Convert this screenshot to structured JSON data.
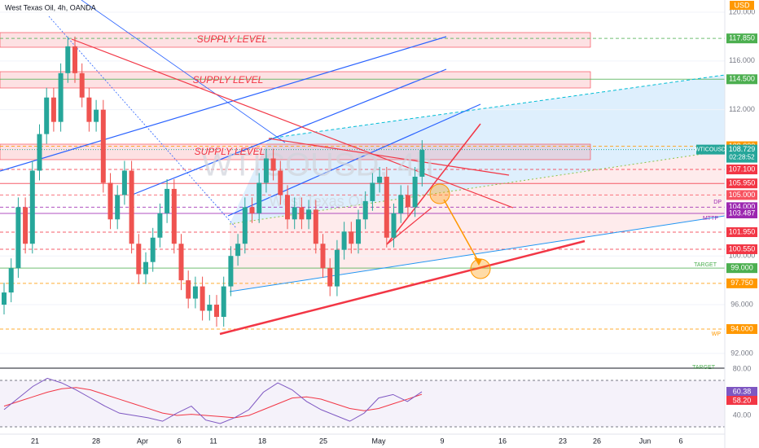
{
  "header": {
    "title": "West Texas Oil, 4h, OANDA",
    "currency": "USD"
  },
  "watermark": {
    "symbol": "WTICOUSD, 4h",
    "name": "West Texas Oil"
  },
  "zones": [
    "SUPPLY LEVEL",
    "SUPPLY LEVEL",
    "SUPPLY LEVEL"
  ],
  "price_ticks": [
    {
      "value": 120,
      "label": "120.000"
    },
    {
      "value": 116,
      "label": "116.000"
    },
    {
      "value": 112,
      "label": "112.000"
    },
    {
      "value": 100,
      "label": "100.000"
    },
    {
      "value": 96,
      "label": "96.000"
    },
    {
      "value": 92,
      "label": "92.000"
    }
  ],
  "price_labels": [
    {
      "value": 117.85,
      "label": "117.850",
      "color": "#4caf50"
    },
    {
      "value": 114.5,
      "label": "114.500",
      "color": "#4caf50"
    },
    {
      "value": 109,
      "label": "109.000",
      "color": "#ff9800"
    },
    {
      "value": 107.1,
      "label": "107.100",
      "color": "#f23645"
    },
    {
      "value": 105.95,
      "label": "105.950",
      "color": "#f23645"
    },
    {
      "value": 105,
      "label": "105.000",
      "color": "#f7525f"
    },
    {
      "value": 104,
      "label": "104.000",
      "color": "#9c27b0"
    },
    {
      "value": 103.487,
      "label": "103.487",
      "color": "#9c27b0"
    },
    {
      "value": 101.95,
      "label": "101.950",
      "color": "#f23645"
    },
    {
      "value": 100.55,
      "label": "100.550",
      "color": "#f23645"
    },
    {
      "value": 99,
      "label": "99.000",
      "color": "#4caf50"
    },
    {
      "value": 97.75,
      "label": "97.750",
      "color": "#ff9800"
    },
    {
      "value": 94,
      "label": "94.000",
      "color": "#ff9800"
    }
  ],
  "last_price": {
    "symbol": "WTICOUSD",
    "value": 108.729,
    "label": "108.729",
    "countdown": "02:28:52"
  },
  "line_tags": [
    "DP",
    "MTTP",
    "TARGET",
    "WP",
    "TARGET"
  ],
  "time_axis": [
    "21",
    "28",
    "Apr",
    "6",
    "11",
    "18",
    "25",
    "May",
    "9",
    "16",
    "23",
    "26",
    "Jun",
    "6"
  ],
  "candles": [
    [
      96,
      97.8,
      95.2,
      97
    ],
    [
      97,
      99.8,
      96.2,
      99
    ],
    [
      99,
      104.8,
      98.2,
      104
    ],
    [
      104,
      104.8,
      100.2,
      101
    ],
    [
      101,
      107.8,
      100.2,
      107
    ],
    [
      107,
      110.8,
      106.2,
      110
    ],
    [
      110,
      113.8,
      109.2,
      113
    ],
    [
      113,
      113.8,
      110.2,
      111
    ],
    [
      111,
      115.8,
      110.2,
      115
    ],
    [
      115,
      118,
      114.2,
      117.2
    ],
    [
      117.2,
      118,
      114.2,
      115
    ],
    [
      115,
      115.8,
      112.2,
      113
    ],
    [
      113,
      113.8,
      110.2,
      111
    ],
    [
      111,
      112.8,
      110.2,
      112
    ],
    [
      112,
      112.8,
      105.2,
      106
    ],
    [
      106,
      106.8,
      102.2,
      103
    ],
    [
      103,
      105.8,
      102.2,
      105
    ],
    [
      105,
      107.8,
      104.2,
      107
    ],
    [
      107,
      107.8,
      100.2,
      101
    ],
    [
      101,
      101.8,
      97.7,
      98.5
    ],
    [
      98.5,
      100.3,
      97.7,
      99.5
    ],
    [
      99.5,
      102.3,
      98.7,
      101.5
    ],
    [
      101.5,
      104.3,
      100.7,
      103.5
    ],
    [
      103.5,
      106.3,
      102.7,
      105.5
    ],
    [
      105.5,
      106.3,
      100.2,
      101
    ],
    [
      101,
      101.8,
      97.2,
      98
    ],
    [
      98,
      98.8,
      95.7,
      96.5
    ],
    [
      96.5,
      98.3,
      95.7,
      97.5
    ],
    [
      97.5,
      98.3,
      94.7,
      95.5
    ],
    [
      95.5,
      96.8,
      94.7,
      96
    ],
    [
      96,
      96.8,
      94.2,
      95
    ],
    [
      95,
      98.3,
      94.2,
      97.5
    ],
    [
      97.5,
      100.8,
      96.7,
      100
    ],
    [
      100,
      101.8,
      99.2,
      101
    ],
    [
      101,
      104.8,
      100.2,
      104
    ],
    [
      104,
      104.8,
      102.7,
      103.5
    ],
    [
      103.5,
      106.8,
      102.7,
      106
    ],
    [
      106,
      108.8,
      105.2,
      108
    ],
    [
      108,
      108.8,
      106.2,
      107
    ],
    [
      107,
      107.8,
      104.2,
      105
    ],
    [
      105,
      105.8,
      102.2,
      103
    ],
    [
      103,
      104.8,
      102.2,
      104
    ],
    [
      104,
      104.8,
      102.2,
      103
    ],
    [
      103,
      104.6,
      102.2,
      103.8
    ],
    [
      103.8,
      104.6,
      100.2,
      101
    ],
    [
      101,
      101.8,
      98.2,
      99
    ],
    [
      99,
      99.8,
      96.7,
      97.5
    ],
    [
      97.5,
      101.3,
      96.7,
      100.5
    ],
    [
      100.5,
      102.8,
      99.7,
      102
    ],
    [
      102,
      102.8,
      100.2,
      101
    ],
    [
      101,
      103.8,
      100.2,
      103
    ],
    [
      103,
      105.3,
      102.2,
      104.5
    ],
    [
      104.5,
      106.8,
      103.7,
      106
    ],
    [
      106,
      107.3,
      105.2,
      106.5
    ],
    [
      106.5,
      107.3,
      100.7,
      101.5
    ],
    [
      101.5,
      104.3,
      100.7,
      103.5
    ],
    [
      103.5,
      105.8,
      102.7,
      105
    ],
    [
      105,
      105.8,
      103.2,
      104
    ],
    [
      104,
      107.3,
      103.2,
      106.5
    ],
    [
      106.5,
      109.5,
      105.7,
      108.7
    ]
  ],
  "rsi": {
    "ticks": [
      {
        "value": 80,
        "label": "80.00"
      },
      {
        "value": 40,
        "label": "40.00"
      }
    ],
    "values": [
      45,
      55,
      65,
      72,
      68,
      62,
      55,
      48,
      42,
      40,
      38,
      35,
      42,
      48,
      36,
      33,
      38,
      45,
      60,
      68,
      62,
      52,
      45,
      40,
      35,
      42,
      55,
      58,
      52,
      60.38
    ],
    "ma": [
      48,
      52,
      56,
      60,
      63,
      64,
      62,
      58,
      54,
      50,
      46,
      42,
      40,
      41,
      40,
      39,
      38,
      40,
      45,
      50,
      55,
      56,
      54,
      50,
      46,
      44,
      46,
      50,
      54,
      58.2
    ],
    "value_label": "60.38",
    "ma_label": "58.20"
  }
}
